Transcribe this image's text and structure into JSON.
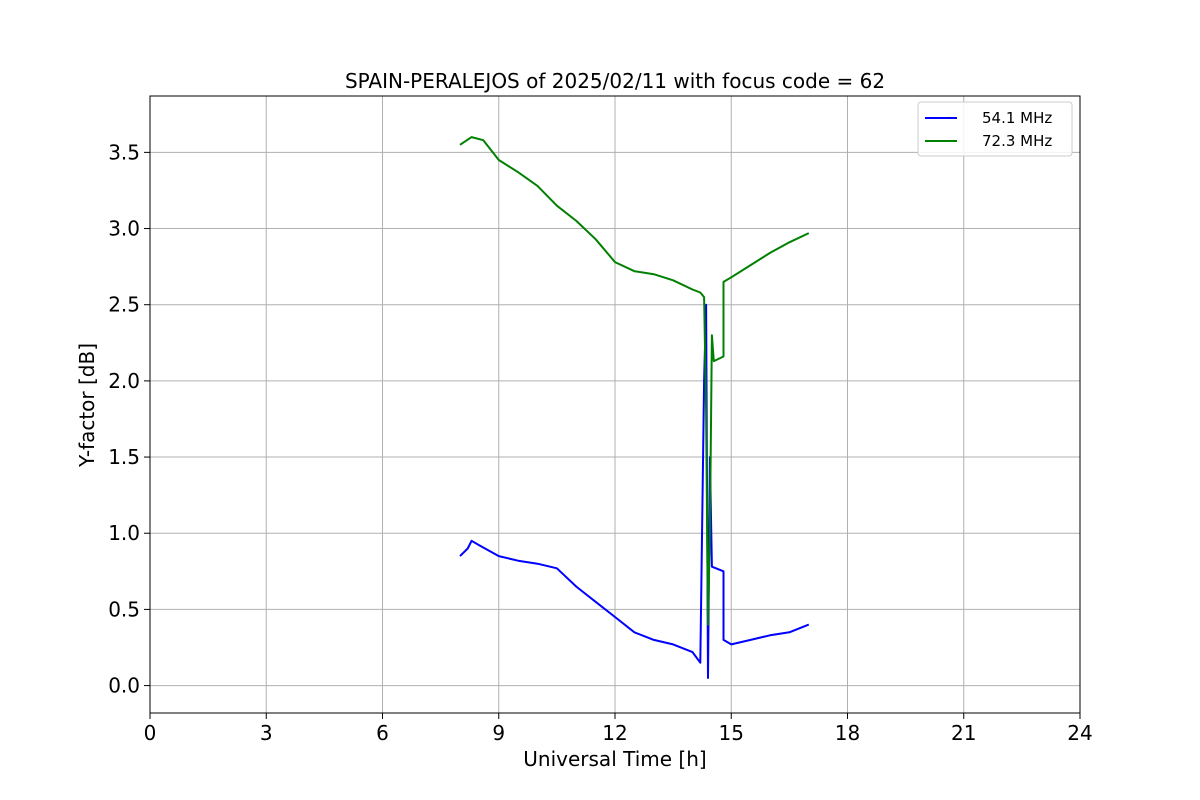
{
  "chart_data": {
    "type": "line",
    "title": "SPAIN-PERALEJOS of 2025/02/11 with focus code = 62",
    "xlabel": "Universal Time [h]",
    "ylabel": "Y-factor [dB]",
    "xlim": [
      0,
      24
    ],
    "ylim": [
      -0.18,
      3.87
    ],
    "xticks": [
      0,
      3,
      6,
      9,
      12,
      15,
      18,
      21,
      24
    ],
    "xtick_labels": [
      "0",
      "3",
      "6",
      "9",
      "12",
      "15",
      "18",
      "21",
      "24"
    ],
    "yticks": [
      0.0,
      0.5,
      1.0,
      1.5,
      2.0,
      2.5,
      3.0,
      3.5
    ],
    "ytick_labels": [
      "0.0",
      "0.5",
      "1.0",
      "1.5",
      "2.0",
      "2.5",
      "3.0",
      "3.5"
    ],
    "grid": true,
    "legend_position": "top-right",
    "series": [
      {
        "name": "54.1 MHz",
        "color": "#0000ff",
        "x": [
          8.0,
          8.2,
          8.3,
          8.5,
          9.0,
          9.5,
          10.0,
          10.5,
          11.0,
          11.5,
          12.0,
          12.5,
          13.0,
          13.5,
          14.0,
          14.2,
          14.3,
          14.35,
          14.4,
          14.45,
          14.5,
          14.8,
          14.8,
          15.0,
          15.5,
          16.0,
          16.5,
          17.0
        ],
        "y": [
          0.85,
          0.9,
          0.95,
          0.92,
          0.85,
          0.82,
          0.8,
          0.77,
          0.65,
          0.55,
          0.45,
          0.35,
          0.3,
          0.27,
          0.22,
          0.15,
          2.0,
          2.5,
          0.05,
          1.5,
          0.78,
          0.75,
          0.3,
          0.27,
          0.3,
          0.33,
          0.35,
          0.4
        ]
      },
      {
        "name": "72.3 MHz",
        "color": "#008000",
        "x": [
          8.0,
          8.3,
          8.6,
          9.0,
          9.5,
          10.0,
          10.5,
          11.0,
          11.5,
          12.0,
          12.5,
          13.0,
          13.5,
          14.0,
          14.2,
          14.3,
          14.35,
          14.4,
          14.45,
          14.5,
          14.55,
          14.8,
          14.8,
          15.0,
          15.5,
          16.0,
          16.5,
          17.0
        ],
        "y": [
          3.55,
          3.6,
          3.58,
          3.45,
          3.37,
          3.28,
          3.15,
          3.05,
          2.93,
          2.78,
          2.72,
          2.7,
          2.66,
          2.6,
          2.58,
          2.55,
          1.8,
          0.4,
          1.0,
          2.3,
          2.13,
          2.16,
          2.65,
          2.68,
          2.76,
          2.84,
          2.91,
          2.97
        ]
      }
    ]
  }
}
